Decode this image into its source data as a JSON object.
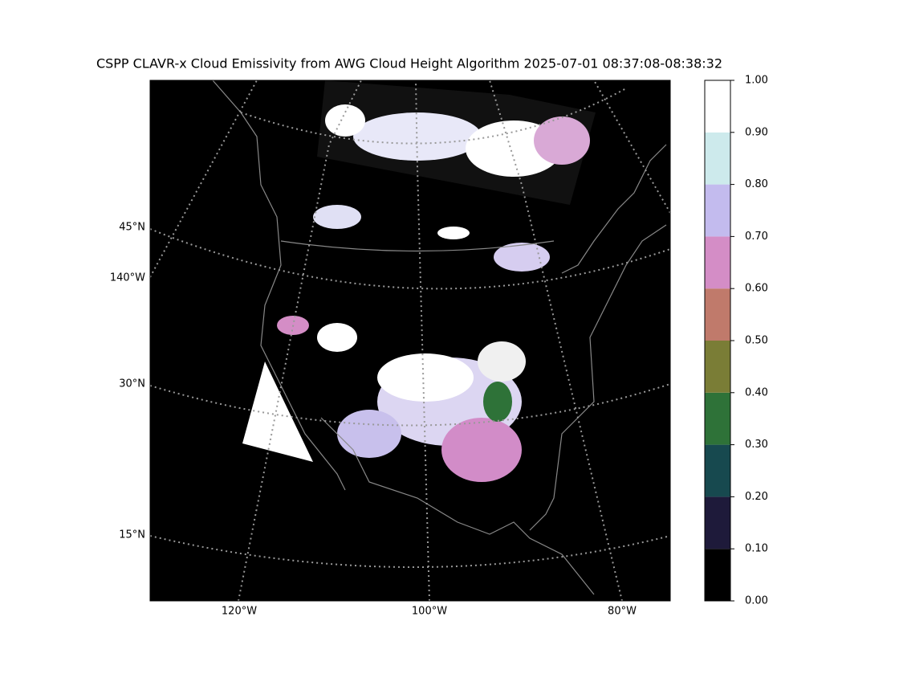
{
  "title": "CSPP CLAVR-x Cloud Emissivity from AWG Cloud Height Algorithm 2025-07-01 08:37:08-08:38:32",
  "map": {
    "lat_labels": [
      "45°N",
      "140°W",
      "30°N",
      "15°N"
    ],
    "lon_labels": [
      "120°W",
      "100°W",
      "80°W"
    ]
  },
  "colorbar": {
    "lim": [
      0,
      1
    ],
    "ticks": [
      {
        "value": 0,
        "label": "0.00"
      },
      {
        "value": 0.1,
        "label": "0.10"
      },
      {
        "value": 0.2,
        "label": "0.20"
      },
      {
        "value": 0.3,
        "label": "0.30"
      },
      {
        "value": 0.4,
        "label": "0.40"
      },
      {
        "value": 0.5,
        "label": "0.50"
      },
      {
        "value": 0.6,
        "label": "0.60"
      },
      {
        "value": 0.7,
        "label": "0.70"
      },
      {
        "value": 0.8,
        "label": "0.80"
      },
      {
        "value": 0.9,
        "label": "0.90"
      },
      {
        "value": 1,
        "label": "1.00"
      }
    ],
    "colors": [
      "#000000",
      "#1e1a3a",
      "#17494f",
      "#2e7238",
      "#7a7d36",
      "#c07a6b",
      "#d48dc6",
      "#c3bbee",
      "#cdeaec",
      "#ffffff"
    ]
  }
}
